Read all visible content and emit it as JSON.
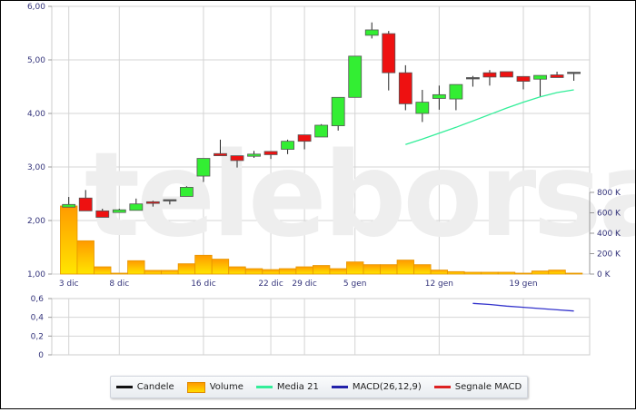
{
  "watermark": "teleborsa",
  "chart_data": [
    {
      "type": "candlestick",
      "title": "",
      "price_axis": {
        "ticks": [
          "1,00",
          "2,00",
          "3,00",
          "4,00",
          "5,00",
          "6,00"
        ],
        "ylim": [
          1,
          6
        ]
      },
      "volume_axis": {
        "ticks": [
          "0 K",
          "200 K",
          "400 K",
          "600 K",
          "800 K"
        ],
        "ylim_k": [
          0,
          800
        ]
      },
      "x_ticks": [
        {
          "label": "3 dic",
          "index": 0
        },
        {
          "label": "8 dic",
          "index": 3
        },
        {
          "label": "16 dic",
          "index": 8
        },
        {
          "label": "22 dic",
          "index": 12
        },
        {
          "label": "29 dic",
          "index": 14
        },
        {
          "label": "5 gen",
          "index": 17
        },
        {
          "label": "12 gen",
          "index": 22
        },
        {
          "label": "19 gen",
          "index": 27
        }
      ],
      "grid": true,
      "colors": {
        "up": "#33ee33",
        "down": "#ee1111",
        "volume_top": "#ff9a00",
        "volume_bottom": "#ffe600",
        "media21": "#33ee99",
        "macd": "#3333cc",
        "signal": "#dd2222"
      },
      "candles": [
        {
          "o": 2.25,
          "h": 2.44,
          "l": 2.25,
          "c": 2.3,
          "v": 667
        },
        {
          "o": 2.42,
          "h": 2.57,
          "l": 2.18,
          "c": 2.18,
          "v": 326
        },
        {
          "o": 2.18,
          "h": 2.22,
          "l": 2.06,
          "c": 2.06,
          "v": 71
        },
        {
          "o": 2.15,
          "h": 2.22,
          "l": 2.15,
          "c": 2.2,
          "v": 9
        },
        {
          "o": 2.19,
          "h": 2.41,
          "l": 2.19,
          "c": 2.31,
          "v": 131
        },
        {
          "o": 2.35,
          "h": 2.37,
          "l": 2.26,
          "c": 2.32,
          "v": 36
        },
        {
          "o": 2.39,
          "h": 2.39,
          "l": 2.3,
          "c": 2.39,
          "v": 36
        },
        {
          "o": 2.45,
          "h": 2.64,
          "l": 2.45,
          "c": 2.62,
          "v": 101
        },
        {
          "o": 2.83,
          "h": 3.16,
          "l": 2.72,
          "c": 3.16,
          "v": 184
        },
        {
          "o": 3.25,
          "h": 3.51,
          "l": 3.21,
          "c": 3.21,
          "v": 146
        },
        {
          "o": 3.21,
          "h": 3.21,
          "l": 2.99,
          "c": 3.12,
          "v": 71
        },
        {
          "o": 3.2,
          "h": 3.3,
          "l": 3.17,
          "c": 3.24,
          "v": 53
        },
        {
          "o": 3.29,
          "h": 3.29,
          "l": 3.15,
          "c": 3.23,
          "v": 44
        },
        {
          "o": 3.33,
          "h": 3.51,
          "l": 3.24,
          "c": 3.48,
          "v": 53
        },
        {
          "o": 3.6,
          "h": 3.6,
          "l": 3.33,
          "c": 3.48,
          "v": 71
        },
        {
          "o": 3.56,
          "h": 3.8,
          "l": 3.56,
          "c": 3.78,
          "v": 84
        },
        {
          "o": 3.77,
          "h": 4.3,
          "l": 3.68,
          "c": 4.3,
          "v": 53
        },
        {
          "o": 4.3,
          "h": 5.07,
          "l": 4.3,
          "c": 5.07,
          "v": 119
        },
        {
          "o": 5.46,
          "h": 5.7,
          "l": 5.4,
          "c": 5.56,
          "v": 92
        },
        {
          "o": 5.49,
          "h": 5.54,
          "l": 4.43,
          "c": 4.76,
          "v": 92
        },
        {
          "o": 4.76,
          "h": 4.9,
          "l": 4.06,
          "c": 4.18,
          "v": 137
        },
        {
          "o": 4.0,
          "h": 4.44,
          "l": 3.84,
          "c": 4.21,
          "v": 92
        },
        {
          "o": 4.28,
          "h": 4.52,
          "l": 4.07,
          "c": 4.35,
          "v": 39
        },
        {
          "o": 4.27,
          "h": 4.54,
          "l": 4.06,
          "c": 4.54,
          "v": 24
        },
        {
          "o": 4.67,
          "h": 4.7,
          "l": 4.5,
          "c": 4.67,
          "v": 18
        },
        {
          "o": 4.76,
          "h": 4.81,
          "l": 4.52,
          "c": 4.68,
          "v": 18
        },
        {
          "o": 4.78,
          "h": 4.78,
          "l": 4.68,
          "c": 4.68,
          "v": 18
        },
        {
          "o": 4.69,
          "h": 4.69,
          "l": 4.45,
          "c": 4.6,
          "v": 9
        },
        {
          "o": 4.64,
          "h": 4.71,
          "l": 4.31,
          "c": 4.71,
          "v": 30
        },
        {
          "o": 4.72,
          "h": 4.78,
          "l": 4.67,
          "c": 4.67,
          "v": 39
        },
        {
          "o": 4.77,
          "h": 4.77,
          "l": 4.61,
          "c": 4.77,
          "v": 9
        }
      ],
      "media21": {
        "start_index": 20,
        "values": [
          3.42,
          3.52,
          3.63,
          3.74,
          3.86,
          3.98,
          4.1,
          4.21,
          4.31,
          4.39,
          4.44
        ]
      }
    },
    {
      "type": "line",
      "title": "",
      "y_ticks": [
        "0",
        "0,2",
        "0,4",
        "0,6"
      ],
      "ylim": [
        0,
        0.6
      ],
      "grid": true,
      "macd": {
        "start_index": 24,
        "values": [
          0.549,
          0.537,
          0.52,
          0.507,
          0.494,
          0.48,
          0.467
        ]
      }
    }
  ],
  "legend": [
    {
      "label": "Candele",
      "color": "#111111",
      "kind": "line"
    },
    {
      "label": "Volume",
      "color": "#ffb000",
      "kind": "box"
    },
    {
      "label": "Media 21",
      "color": "#33ee99",
      "kind": "line"
    },
    {
      "label": "MACD(26,12,9)",
      "color": "#2222aa",
      "kind": "line"
    },
    {
      "label": "Segnale MACD",
      "color": "#dd2222",
      "kind": "line"
    }
  ]
}
